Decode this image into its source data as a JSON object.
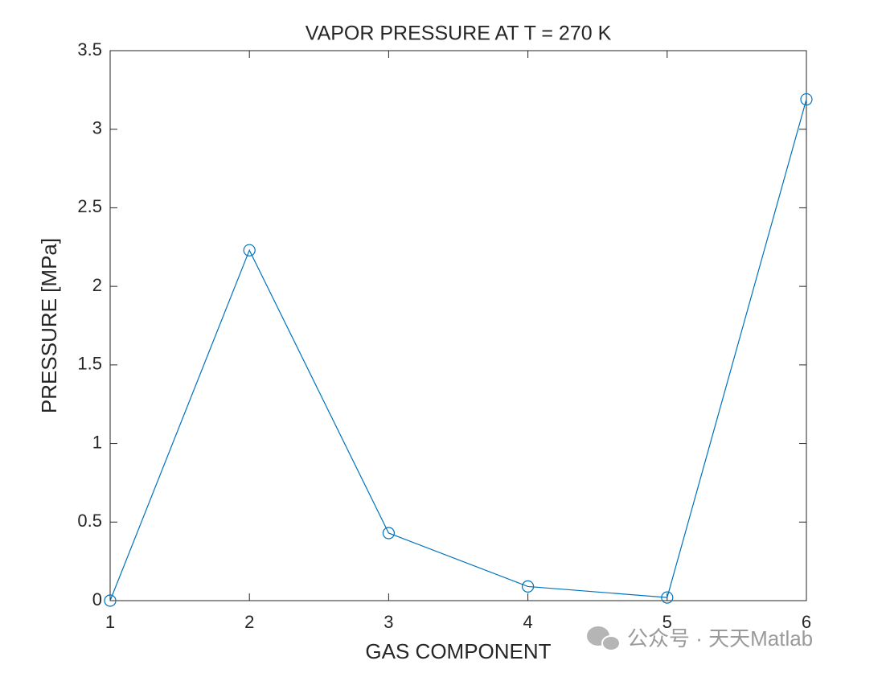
{
  "chart_data": {
    "type": "line",
    "title": "VAPOR PRESSURE AT T = 270 K",
    "xlabel": "GAS COMPONENT",
    "ylabel": "PRESSURE [MPa]",
    "x": [
      1,
      2,
      3,
      4,
      5,
      6
    ],
    "series": [
      {
        "name": "PRESSURE",
        "color": "#0072bd",
        "marker": "circle",
        "values": [
          0,
          2.23,
          0.43,
          0.09,
          0.02,
          3.19
        ]
      }
    ],
    "xlim": [
      1,
      6
    ],
    "xticks": [
      1,
      2,
      3,
      4,
      5,
      6
    ],
    "ylim": [
      0,
      3.5
    ],
    "yticks": [
      0,
      0.5,
      1,
      1.5,
      2,
      2.5,
      3,
      3.5
    ],
    "grid": false,
    "legend": false
  },
  "watermark": "公众号 · 天天Matlab"
}
